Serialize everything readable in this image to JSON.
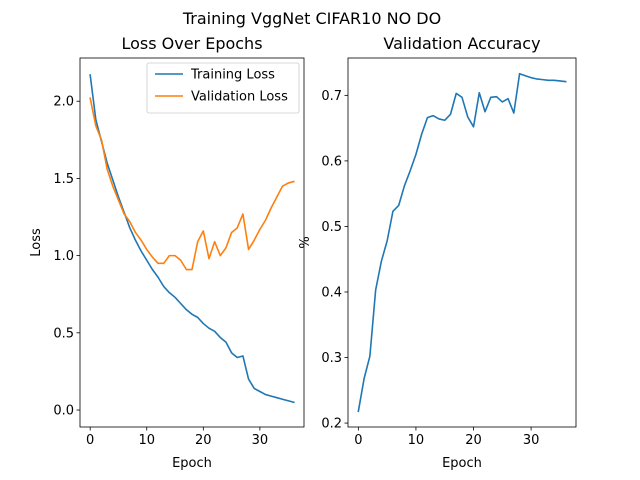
{
  "figure": {
    "suptitle": "Training VggNet CIFAR10 NO DO"
  },
  "chart_data": [
    {
      "type": "line",
      "title": "Loss Over Epochs",
      "xlabel": "Epoch",
      "ylabel": "Loss",
      "xlim": [
        -1.8,
        37.8
      ],
      "ylim": [
        -0.11,
        2.28
      ],
      "xticks": [
        0,
        10,
        20,
        30
      ],
      "yticks": [
        0.0,
        0.5,
        1.0,
        1.5,
        2.0
      ],
      "ytick_labels": [
        "0.0",
        "0.5",
        "1.0",
        "1.5",
        "2.0"
      ],
      "grid": false,
      "legend": "top-right",
      "x": [
        0,
        1,
        2,
        3,
        4,
        5,
        6,
        7,
        8,
        9,
        10,
        11,
        12,
        13,
        14,
        15,
        16,
        17,
        18,
        19,
        20,
        21,
        22,
        23,
        24,
        25,
        26,
        27,
        28,
        29,
        30,
        31,
        32,
        33,
        34,
        35,
        36
      ],
      "series": [
        {
          "name": "Training Loss",
          "color": "#1f77b4",
          "values": [
            2.17,
            1.88,
            1.74,
            1.6,
            1.49,
            1.38,
            1.28,
            1.18,
            1.1,
            1.03,
            0.97,
            0.91,
            0.86,
            0.8,
            0.76,
            0.73,
            0.69,
            0.65,
            0.62,
            0.6,
            0.56,
            0.53,
            0.51,
            0.47,
            0.44,
            0.37,
            0.34,
            0.35,
            0.2,
            0.14,
            0.12,
            0.1,
            0.09,
            0.08,
            0.07,
            0.06,
            0.05
          ]
        },
        {
          "name": "Validation Loss",
          "color": "#ff7f0e",
          "values": [
            2.02,
            1.84,
            1.75,
            1.56,
            1.45,
            1.36,
            1.27,
            1.22,
            1.15,
            1.1,
            1.04,
            0.99,
            0.95,
            0.95,
            1.0,
            1.0,
            0.97,
            0.91,
            0.91,
            1.09,
            1.16,
            0.98,
            1.09,
            1.0,
            1.05,
            1.15,
            1.18,
            1.27,
            1.04,
            1.1,
            1.17,
            1.23,
            1.31,
            1.38,
            1.45,
            1.47,
            1.48
          ]
        }
      ]
    },
    {
      "type": "line",
      "title": "Validation Accuracy",
      "xlabel": "Epoch",
      "ylabel": "%",
      "xlim": [
        -1.8,
        37.8
      ],
      "ylim": [
        0.194,
        0.757
      ],
      "xticks": [
        0,
        10,
        20,
        30
      ],
      "yticks": [
        0.2,
        0.3,
        0.4,
        0.5,
        0.6,
        0.7
      ],
      "ytick_labels": [
        "0.2",
        "0.3",
        "0.4",
        "0.5",
        "0.6",
        "0.7"
      ],
      "grid": false,
      "x": [
        0,
        1,
        2,
        3,
        4,
        5,
        6,
        7,
        8,
        9,
        10,
        11,
        12,
        13,
        14,
        15,
        16,
        17,
        18,
        19,
        20,
        21,
        22,
        23,
        24,
        25,
        26,
        27,
        28,
        29,
        30,
        31,
        32,
        33,
        34,
        35,
        36
      ],
      "series": [
        {
          "color": "#1f77b4",
          "values": [
            0.218,
            0.268,
            0.302,
            0.403,
            0.447,
            0.478,
            0.523,
            0.532,
            0.562,
            0.585,
            0.61,
            0.641,
            0.666,
            0.669,
            0.664,
            0.662,
            0.671,
            0.703,
            0.697,
            0.667,
            0.652,
            0.704,
            0.675,
            0.697,
            0.698,
            0.69,
            0.695,
            0.673,
            0.733,
            0.73,
            0.727,
            0.725,
            0.724,
            0.723,
            0.723,
            0.722,
            0.721
          ]
        }
      ]
    }
  ]
}
